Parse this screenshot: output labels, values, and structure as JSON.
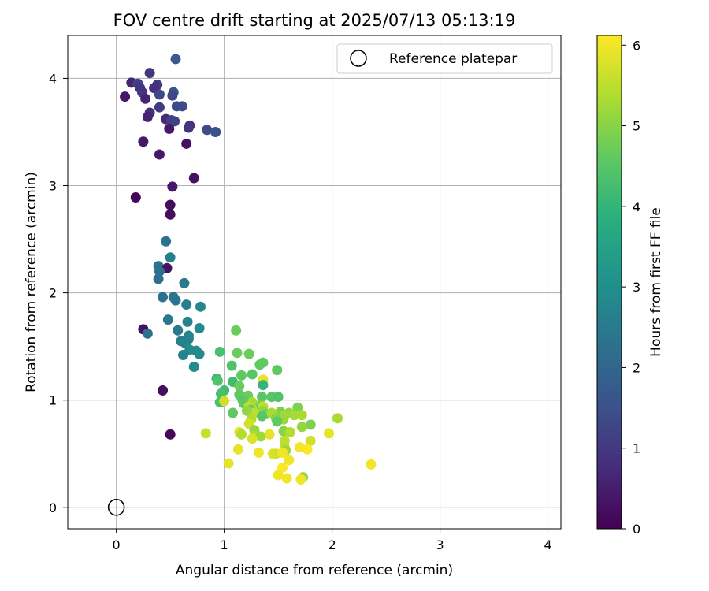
{
  "chart_data": {
    "type": "scatter",
    "title": "FOV centre drift starting at 2025/07/13 05:13:19",
    "xlabel": "Angular distance from reference (arcmin)",
    "ylabel": "Rotation from reference (arcmin)",
    "xlim": [
      -0.45,
      4.12
    ],
    "ylim": [
      -0.2,
      4.4
    ],
    "xticks": [
      0,
      1,
      2,
      3,
      4
    ],
    "yticks": [
      0,
      1,
      2,
      3,
      4
    ],
    "grid": true,
    "colormap": "viridis",
    "colorbar": {
      "label": "Hours from first FF file",
      "range": [
        0,
        6.12
      ],
      "ticks": [
        0,
        1,
        2,
        3,
        4,
        5,
        6
      ]
    },
    "legend": {
      "position": "top-right",
      "entries": [
        "Reference platepar"
      ]
    },
    "reference_point": {
      "x": 0,
      "y": 0
    },
    "points": [
      [
        0.55,
        4.18,
        1.7
      ],
      [
        0.31,
        4.05,
        1.0
      ],
      [
        0.14,
        3.96,
        0.6
      ],
      [
        0.2,
        3.95,
        1.2
      ],
      [
        0.38,
        3.94,
        1.0
      ],
      [
        0.22,
        3.91,
        0.9
      ],
      [
        0.35,
        3.91,
        0.8
      ],
      [
        0.24,
        3.87,
        0.9
      ],
      [
        0.53,
        3.87,
        1.6
      ],
      [
        0.4,
        3.85,
        1.3
      ],
      [
        0.52,
        3.84,
        1.3
      ],
      [
        0.27,
        3.81,
        0.6
      ],
      [
        0.08,
        3.83,
        0.4
      ],
      [
        0.56,
        3.74,
        1.4
      ],
      [
        0.61,
        3.74,
        1.4
      ],
      [
        0.4,
        3.73,
        1.1
      ],
      [
        0.31,
        3.68,
        0.8
      ],
      [
        0.46,
        3.62,
        0.7
      ],
      [
        0.29,
        3.64,
        0.6
      ],
      [
        0.51,
        3.61,
        1.2
      ],
      [
        0.54,
        3.6,
        1.2
      ],
      [
        0.68,
        3.56,
        0.8
      ],
      [
        0.67,
        3.54,
        0.9
      ],
      [
        0.84,
        3.52,
        1.4
      ],
      [
        0.92,
        3.5,
        1.5
      ],
      [
        0.49,
        3.53,
        0.4
      ],
      [
        0.25,
        3.41,
        0.4
      ],
      [
        0.65,
        3.39,
        0.3
      ],
      [
        0.4,
        3.29,
        0.4
      ],
      [
        0.72,
        3.07,
        0.3
      ],
      [
        0.52,
        2.99,
        0.4
      ],
      [
        0.18,
        2.89,
        0.1
      ],
      [
        0.5,
        2.82,
        0.2
      ],
      [
        0.5,
        2.73,
        0.2
      ],
      [
        0.46,
        2.48,
        2.3
      ],
      [
        0.5,
        2.33,
        2.6
      ],
      [
        0.39,
        2.25,
        2.3
      ],
      [
        0.47,
        2.23,
        0.3
      ],
      [
        0.4,
        2.2,
        2.3
      ],
      [
        0.39,
        2.13,
        2.2
      ],
      [
        0.63,
        2.09,
        2.5
      ],
      [
        0.43,
        1.96,
        2.3
      ],
      [
        0.53,
        1.96,
        2.4
      ],
      [
        0.55,
        1.93,
        2.4
      ],
      [
        0.65,
        1.89,
        2.6
      ],
      [
        0.78,
        1.87,
        2.8
      ],
      [
        0.66,
        1.73,
        2.7
      ],
      [
        0.48,
        1.75,
        2.5
      ],
      [
        0.77,
        1.67,
        2.9
      ],
      [
        0.57,
        1.65,
        2.5
      ],
      [
        0.25,
        1.66,
        0.3
      ],
      [
        0.29,
        1.62,
        2.3
      ],
      [
        0.67,
        1.6,
        2.7
      ],
      [
        0.67,
        1.57,
        2.7
      ],
      [
        0.6,
        1.55,
        2.6
      ],
      [
        0.64,
        1.53,
        2.7
      ],
      [
        0.68,
        1.47,
        2.9
      ],
      [
        0.74,
        1.46,
        2.9
      ],
      [
        0.77,
        1.43,
        2.9
      ],
      [
        0.62,
        1.42,
        2.7
      ],
      [
        0.72,
        1.31,
        2.9
      ],
      [
        1.11,
        1.65,
        4.7
      ],
      [
        0.96,
        1.45,
        4.3
      ],
      [
        1.12,
        1.44,
        4.7
      ],
      [
        1.23,
        1.43,
        4.7
      ],
      [
        1.36,
        1.35,
        4.6
      ],
      [
        1.33,
        1.33,
        4.6
      ],
      [
        1.07,
        1.32,
        4.4
      ],
      [
        1.26,
        1.24,
        4.5
      ],
      [
        1.49,
        1.28,
        4.6
      ],
      [
        1.16,
        1.23,
        4.6
      ],
      [
        0.93,
        1.2,
        4.1
      ],
      [
        1.08,
        1.17,
        4.2
      ],
      [
        0.94,
        1.18,
        4.4
      ],
      [
        1.36,
        1.19,
        5.9
      ],
      [
        1.14,
        1.13,
        4.7
      ],
      [
        1.0,
        1.09,
        4.2
      ],
      [
        0.97,
        1.06,
        4.3
      ],
      [
        1.36,
        1.14,
        4.0
      ],
      [
        1.35,
        1.03,
        4.5
      ],
      [
        1.14,
        1.05,
        4.6
      ],
      [
        1.22,
        1.04,
        4.7
      ],
      [
        1.44,
        1.03,
        4.5
      ],
      [
        1.5,
        1.03,
        4.4
      ],
      [
        1.17,
        1.0,
        4.5
      ],
      [
        0.97,
        0.98,
        4.2
      ],
      [
        0.96,
        0.98,
        4.3
      ],
      [
        1.0,
        0.99,
        5.7
      ],
      [
        1.26,
        0.98,
        5.3
      ],
      [
        1.18,
        0.97,
        4.6
      ],
      [
        1.34,
        0.95,
        4.8
      ],
      [
        1.23,
        0.94,
        5.5
      ],
      [
        1.36,
        0.94,
        5.5
      ],
      [
        1.68,
        0.93,
        4.9
      ],
      [
        1.25,
        0.91,
        4.7
      ],
      [
        1.36,
        0.9,
        5.1
      ],
      [
        1.28,
        0.88,
        5.5
      ],
      [
        1.21,
        0.9,
        5.1
      ],
      [
        1.08,
        0.88,
        4.6
      ],
      [
        1.52,
        0.89,
        4.9
      ],
      [
        1.6,
        0.88,
        5.1
      ],
      [
        1.72,
        0.86,
        5.3
      ],
      [
        1.65,
        0.86,
        5.3
      ],
      [
        1.39,
        0.87,
        4.8
      ],
      [
        1.44,
        0.88,
        5.3
      ],
      [
        1.55,
        0.85,
        5.3
      ],
      [
        1.35,
        0.85,
        4.5
      ],
      [
        1.48,
        0.83,
        5.0
      ],
      [
        2.05,
        0.83,
        5.3
      ],
      [
        1.25,
        0.82,
        5.4
      ],
      [
        1.55,
        0.82,
        5.2
      ],
      [
        1.49,
        0.8,
        4.6
      ],
      [
        1.8,
        0.77,
        4.9
      ],
      [
        1.23,
        0.78,
        5.7
      ],
      [
        1.72,
        0.75,
        5.1
      ],
      [
        1.28,
        0.72,
        5.1
      ],
      [
        1.55,
        0.71,
        5.0
      ],
      [
        1.61,
        0.7,
        5.4
      ],
      [
        1.97,
        0.69,
        5.9
      ],
      [
        1.14,
        0.7,
        5.9
      ],
      [
        0.83,
        0.69,
        5.6
      ],
      [
        1.28,
        0.67,
        5.3
      ],
      [
        1.34,
        0.66,
        5.2
      ],
      [
        1.16,
        0.68,
        5.4
      ],
      [
        1.42,
        0.68,
        5.9
      ],
      [
        1.26,
        0.64,
        5.8
      ],
      [
        1.8,
        0.62,
        5.7
      ],
      [
        1.56,
        0.62,
        5.5
      ],
      [
        1.56,
        0.56,
        5.5
      ],
      [
        1.7,
        0.56,
        6.0
      ],
      [
        1.57,
        0.53,
        5.2
      ],
      [
        1.77,
        0.54,
        6.1
      ],
      [
        1.13,
        0.54,
        5.9
      ],
      [
        1.32,
        0.51,
        6.0
      ],
      [
        1.45,
        0.5,
        5.8
      ],
      [
        1.48,
        0.5,
        5.7
      ],
      [
        1.54,
        0.51,
        6.0
      ],
      [
        1.6,
        0.44,
        6.0
      ],
      [
        1.04,
        0.41,
        5.9
      ],
      [
        2.36,
        0.4,
        6.0
      ],
      [
        1.54,
        0.37,
        6.1
      ],
      [
        1.5,
        0.3,
        6.0
      ],
      [
        1.58,
        0.27,
        6.0
      ],
      [
        1.73,
        0.28,
        5.1
      ],
      [
        1.71,
        0.26,
        6.0
      ],
      [
        0.43,
        1.09,
        0.2
      ],
      [
        0.5,
        0.68,
        0.1
      ]
    ]
  }
}
